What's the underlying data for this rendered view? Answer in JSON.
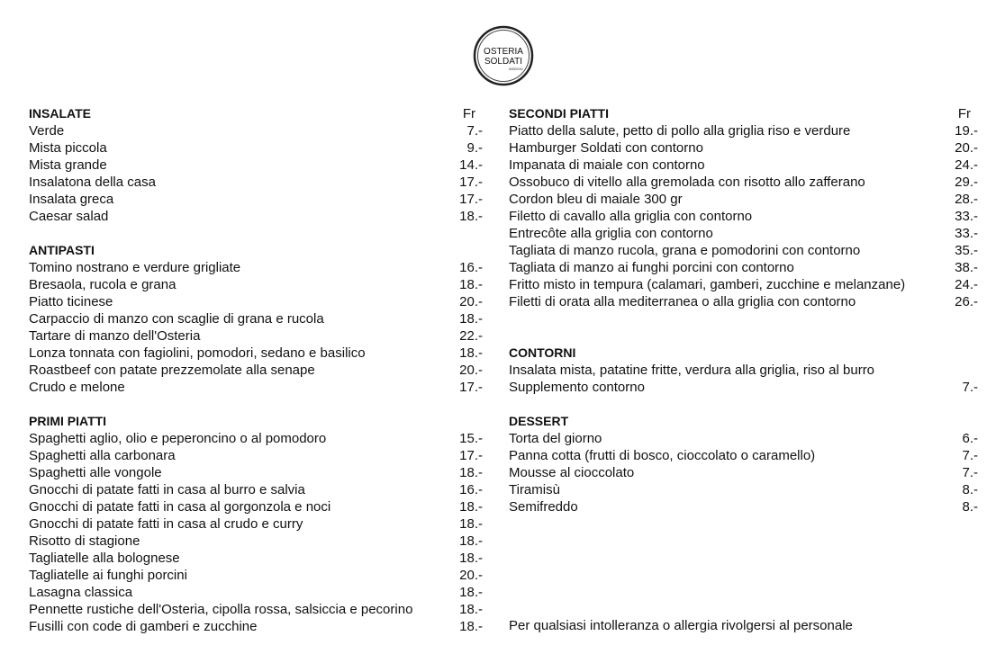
{
  "logo": {
    "line1": "OSTERIA",
    "line2": "SOLDATI",
    "line3": "BIOGGIO"
  },
  "currency": "Fr",
  "left": [
    {
      "title": "INSALATE",
      "items": [
        {
          "name": "Verde",
          "price": "7.-"
        },
        {
          "name": "Mista piccola",
          "price": "9.-"
        },
        {
          "name": "Mista grande",
          "price": "14.-"
        },
        {
          "name": "Insalatona della casa",
          "price": "17.-"
        },
        {
          "name": "Insalata greca",
          "price": "17.-"
        },
        {
          "name": "Caesar salad",
          "price": "18.-"
        }
      ]
    },
    {
      "title": "ANTIPASTI",
      "items": [
        {
          "name": "Tomino nostrano e verdure grigliate",
          "price": "16.-"
        },
        {
          "name": "Bresaola, rucola e grana",
          "price": "18.-"
        },
        {
          "name": "Piatto ticinese",
          "price": "20.-"
        },
        {
          "name": "Carpaccio di manzo con scaglie di grana e rucola",
          "price": "18.-"
        },
        {
          "name": "Tartare di manzo dell'Osteria",
          "price": "22.-"
        },
        {
          "name": "Lonza tonnata con fagiolini, pomodori, sedano e basilico",
          "price": "18.-"
        },
        {
          "name": "Roastbeef con patate prezzemolate alla senape",
          "price": "20.-"
        },
        {
          "name": "Crudo e melone",
          "price": "17.-"
        }
      ]
    },
    {
      "title": "PRIMI PIATTI",
      "items": [
        {
          "name": "Spaghetti aglio, olio e peperoncino o al pomodoro",
          "price": "15.-"
        },
        {
          "name": "Spaghetti alla carbonara",
          "price": "17.-"
        },
        {
          "name": "Spaghetti alle vongole",
          "price": "18.-"
        },
        {
          "name": "Gnocchi di patate fatti in casa al burro e salvia",
          "price": "16.-"
        },
        {
          "name": "Gnocchi di patate fatti in casa al gorgonzola e noci",
          "price": "18.-"
        },
        {
          "name": "Gnocchi di patate fatti in casa al crudo e curry",
          "price": "18.-"
        },
        {
          "name": "Risotto di stagione",
          "price": "18.-"
        },
        {
          "name": "Tagliatelle alla bolognese",
          "price": "18.-"
        },
        {
          "name": "Tagliatelle ai funghi porcini",
          "price": "20.-"
        },
        {
          "name": "Lasagna classica",
          "price": "18.-"
        },
        {
          "name": "Pennette rustiche dell'Osteria, cipolla rossa, salsiccia e pecorino",
          "price": "18.-"
        },
        {
          "name": "Fusilli con code di gamberi e zucchine",
          "price": "18.-"
        }
      ]
    }
  ],
  "right": [
    {
      "title": "SECONDI PIATTI",
      "items": [
        {
          "name": "Piatto della salute, petto di pollo alla griglia riso e verdure",
          "price": "19.-"
        },
        {
          "name": "Hamburger Soldati con contorno",
          "price": "20.-"
        },
        {
          "name": "Impanata di maiale con contorno",
          "price": "24.-"
        },
        {
          "name": "Ossobuco di vitello alla gremolada con risotto allo zafferano",
          "price": "29.-"
        },
        {
          "name": "Cordon bleu di maiale 300 gr",
          "price": "28.-"
        },
        {
          "name": "Filetto di cavallo alla griglia con contorno",
          "price": "33.-"
        },
        {
          "name": "Entrecôte alla griglia con contorno",
          "price": "33.-"
        },
        {
          "name": "Tagliata di manzo rucola, grana e pomodorini con contorno",
          "price": "35.-"
        },
        {
          "name": "Tagliata di manzo ai funghi porcini con contorno",
          "price": "38.-"
        },
        {
          "name": "Fritto misto in tempura (calamari, gamberi, zucchine e melanzane)",
          "price": "24.-"
        },
        {
          "name": "Filetti di orata alla mediterranea o alla griglia con contorno",
          "price": "26.-"
        }
      ]
    },
    {
      "title": "CONTORNI",
      "items": [
        {
          "name": "Insalata mista, patatine fritte, verdura alla griglia, riso al burro",
          "price": ""
        },
        {
          "name": "Supplemento contorno",
          "price": "7.-"
        }
      ]
    },
    {
      "title": "DESSERT",
      "items": [
        {
          "name": "Torta del giorno",
          "price": "6.-"
        },
        {
          "name": "Panna cotta (frutti di bosco, cioccolato o caramello)",
          "price": "7.-"
        },
        {
          "name": "Mousse al cioccolato",
          "price": "7.-"
        },
        {
          "name": "Tiramisù",
          "price": "8.-"
        },
        {
          "name": "Semifreddo",
          "price": "8.-"
        }
      ]
    }
  ],
  "note": "Per qualsiasi intolleranza o allergia rivolgersi al personale"
}
